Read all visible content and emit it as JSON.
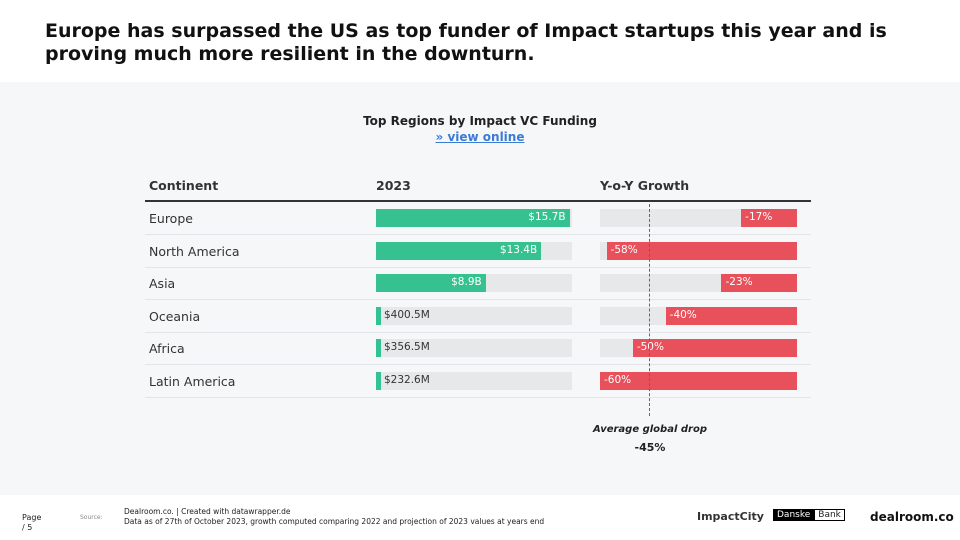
{
  "headline": "Europe has surpassed the US as top funder of Impact startups this year and is proving much more resilient in the downturn.",
  "chart_data": {
    "type": "bar",
    "title": "Top Regions by Impact VC Funding",
    "link": "» view online",
    "columns": [
      "Continent",
      "2023",
      "Y-o-Y Growth"
    ],
    "categories": [
      "Europe",
      "North America",
      "Asia",
      "Oceania",
      "Africa",
      "Latin America"
    ],
    "series": [
      {
        "name": "2023",
        "values": [
          15.7,
          13.4,
          8.9,
          0.4005,
          0.3565,
          0.2326
        ],
        "labels": [
          "$15.7B",
          "$13.4B",
          "$8.9B",
          "$400.5M",
          "$356.5M",
          "$232.6M"
        ],
        "unit": "B USD",
        "max": 15.9
      },
      {
        "name": "Y-o-Y Growth",
        "values": [
          -17,
          -58,
          -23,
          -40,
          -50,
          -60
        ],
        "labels": [
          "-17%",
          "-58%",
          "-23%",
          "-40%",
          "-50%",
          "-60%"
        ],
        "unit": "%",
        "min": -60
      }
    ],
    "annotation": {
      "label": "Average global drop",
      "value": -45,
      "value_label": "-45%"
    },
    "colors": {
      "funding": "#36c290",
      "growth": "#e8505b",
      "track": "#e7e8ea"
    }
  },
  "footer": {
    "page": "Page / 5",
    "source": "Source:",
    "line1": "Dealroom.co. | Created with datawrapper.de",
    "line2": "Data as of 27th of October 2023, growth computed comparing 2022 and projection of 2023 values at years end"
  },
  "logos": {
    "impactcity": "ImpactCity",
    "danske1": "Danske",
    "danske2": "Bank",
    "dealroom": "dealroom.co"
  }
}
